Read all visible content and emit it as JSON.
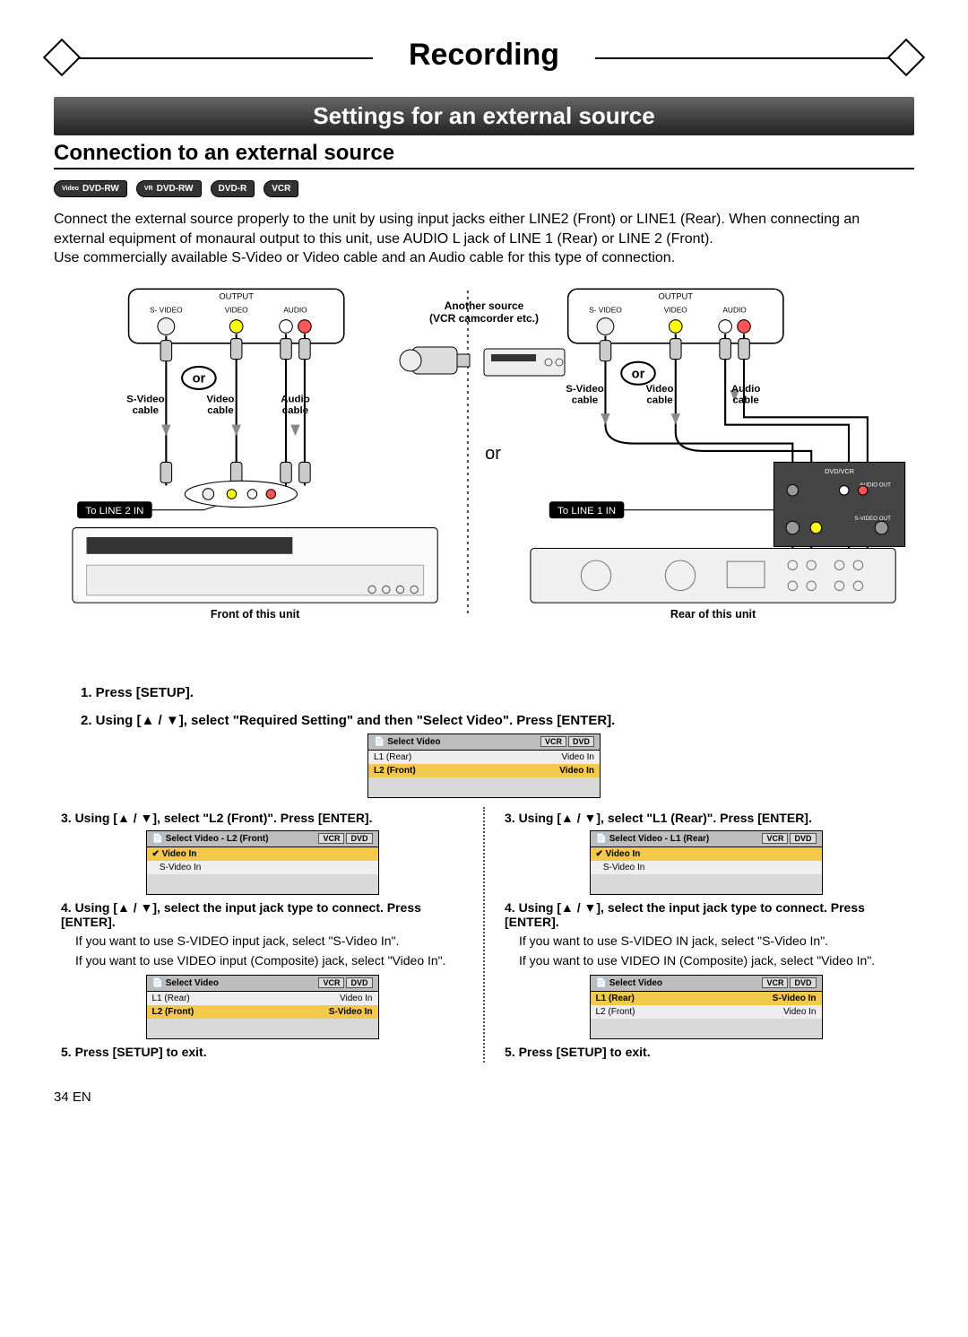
{
  "banner_title": "Recording",
  "black_bar": "Settings for an external source",
  "subheading": "Connection to an external source",
  "badges": [
    {
      "top": "Video",
      "main": "DVD-RW"
    },
    {
      "top": "VR",
      "main": "DVD-RW"
    },
    {
      "top": "",
      "main": "DVD-R"
    },
    {
      "top": "",
      "main": "VCR"
    }
  ],
  "intro": "Connect the external source properly to the unit by using input jacks either LINE2 (Front) or LINE1 (Rear). When connecting an external equipment of monaural output to this unit, use AUDIO L jack of LINE 1 (Rear) or LINE 2 (Front).\nUse commercially available S-Video or Video cable and an Audio cable for this type of connection.",
  "center_source_l1": "Another source",
  "center_source_l2": "(VCR camcorder etc.)",
  "front_caption": "Front of this unit",
  "rear_caption": "Rear of this unit",
  "or_label": "or",
  "diagram": {
    "output_label": "OUTPUT",
    "ports": [
      "S- VIDEO",
      "VIDEO",
      "AUDIO"
    ],
    "cable_labels": [
      "S-Video cable",
      "Video cable",
      "Audio cable"
    ],
    "or_bubble": "or",
    "to_line2": "To LINE 2 IN",
    "to_line1": "To LINE 1 IN",
    "rear_panel": [
      "DVD/VCR",
      "AUDIO OUT",
      "S-VIDEO OUT"
    ]
  },
  "steps_shared": {
    "s1": "1. Press [SETUP].",
    "s2": "2. Using [▲ / ▼], select \"Required Setting\" and then \"Select Video\". Press [ENTER]."
  },
  "menu_shared": {
    "title": "Select Video",
    "tabs": [
      "VCR",
      "DVD"
    ],
    "rows": [
      {
        "l": "L1 (Rear)",
        "r": "Video In",
        "sel": false
      },
      {
        "l": "L2 (Front)",
        "r": "Video In",
        "sel": true
      }
    ]
  },
  "left": {
    "s3": "3. Using [▲ / ▼], select \"L2 (Front)\". Press [ENTER].",
    "menu3": {
      "title": "Select Video - L2 (Front)",
      "tabs": [
        "VCR",
        "DVD"
      ],
      "rows": [
        {
          "l": "Video In",
          "check": true,
          "sel": true
        },
        {
          "l": "S-Video In",
          "check": false,
          "sel": false
        }
      ]
    },
    "s4b": "4. Using [▲ / ▼], select the input jack type to connect. Press [ENTER].",
    "s4p1": "If you want to use S-VIDEO input jack, select \"S-Video In\".",
    "s4p2": "If you want to use VIDEO input (Composite) jack, select \"Video In\".",
    "menu5": {
      "title": "Select Video",
      "tabs": [
        "VCR",
        "DVD"
      ],
      "rows": [
        {
          "l": "L1 (Rear)",
          "r": "Video In",
          "sel": false
        },
        {
          "l": "L2 (Front)",
          "r": "S-Video In",
          "sel": true
        }
      ]
    },
    "s5": "5. Press [SETUP] to exit."
  },
  "right": {
    "s3": "3. Using [▲ / ▼], select \"L1 (Rear)\". Press [ENTER].",
    "menu3": {
      "title": "Select Video - L1 (Rear)",
      "tabs": [
        "VCR",
        "DVD"
      ],
      "rows": [
        {
          "l": "Video In",
          "check": true,
          "sel": true
        },
        {
          "l": "S-Video In",
          "check": false,
          "sel": false
        }
      ]
    },
    "s4b": "4. Using [▲ / ▼], select the input jack type to connect. Press [ENTER].",
    "s4p1": "If you want to use S-VIDEO IN jack, select \"S-Video In\".",
    "s4p2": "If you want to use VIDEO IN (Composite) jack, select \"Video In\".",
    "menu5": {
      "title": "Select Video",
      "tabs": [
        "VCR",
        "DVD"
      ],
      "rows": [
        {
          "l": "L1 (Rear)",
          "r": "S-Video In",
          "sel": true
        },
        {
          "l": "L2 (Front)",
          "r": "Video In",
          "sel": false
        }
      ]
    },
    "s5": "5. Press [SETUP] to exit."
  },
  "page_footer": "34  EN",
  "colors": {
    "highlight": "#f2c94c",
    "menu_head": "#bdbdbd",
    "menu_body": "#d9d9d9"
  }
}
